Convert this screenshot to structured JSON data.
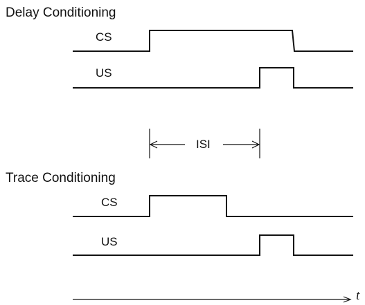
{
  "delay": {
    "title": "Delay Conditioning",
    "cs_label": "CS",
    "us_label": "US"
  },
  "isi": {
    "label": "ISI"
  },
  "trace": {
    "title": "Trace Conditioning",
    "cs_label": "CS",
    "us_label": "US"
  },
  "axis": {
    "label": "t"
  }
}
